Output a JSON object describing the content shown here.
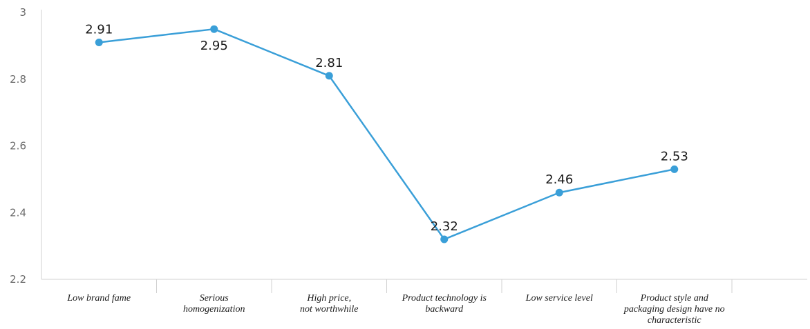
{
  "chart_data": {
    "type": "line",
    "title": "",
    "xlabel": "",
    "ylabel": "",
    "categories": [
      "Low brand fame",
      "Serious homogenization",
      "High price, not worthwhile",
      "Product technology is backward",
      "Low service level",
      "Product style and packaging design have no characteristic"
    ],
    "category_lines": [
      [
        "Low brand fame"
      ],
      [
        "Serious",
        "homogenization"
      ],
      [
        "High price,",
        "not worthwhile"
      ],
      [
        "Product technology is",
        "backward"
      ],
      [
        "Low service level"
      ],
      [
        "Product style and",
        "packaging design have no",
        "characteristic"
      ]
    ],
    "series": [
      {
        "values": [
          2.91,
          2.95,
          2.81,
          2.32,
          2.46,
          2.53
        ]
      }
    ],
    "data_labels": [
      "2.91",
      "2.95",
      "2.81",
      "2.32",
      "2.46",
      "2.53"
    ],
    "yticks": [
      "2.2",
      "2.4",
      "2.6",
      "2.8",
      "3"
    ],
    "ylim": [
      2.2,
      3
    ],
    "grid": false,
    "legend": "none",
    "colors": {
      "line": "#3a9fd8",
      "axis": "#d0d0d0",
      "tick_text": "#6b6b6b"
    }
  }
}
